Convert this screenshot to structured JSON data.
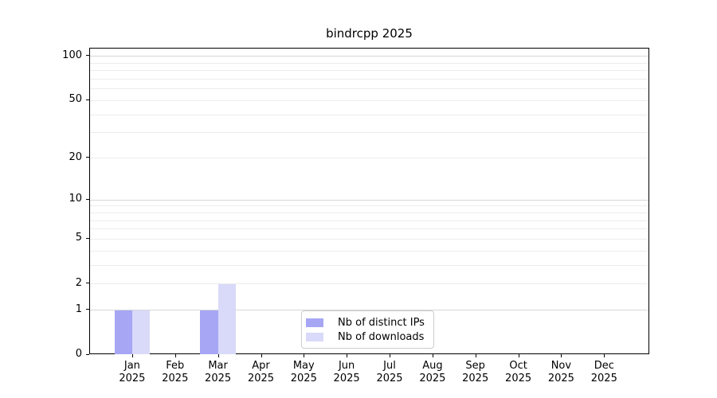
{
  "chart_data": {
    "type": "bar",
    "title": "bindrcpp 2025",
    "categories": [
      "Jan",
      "Feb",
      "Mar",
      "Apr",
      "May",
      "Jun",
      "Jul",
      "Aug",
      "Sep",
      "Oct",
      "Nov",
      "Dec"
    ],
    "x_tick_year": "2025",
    "series": [
      {
        "name": "Nb of distinct IPs",
        "color": "#a6a6f5",
        "values": [
          1,
          0,
          1,
          0,
          0,
          0,
          0,
          0,
          0,
          0,
          0,
          0
        ]
      },
      {
        "name": "Nb of downloads",
        "color": "#d9d9f9",
        "values": [
          1,
          0,
          2,
          0,
          0,
          0,
          0,
          0,
          0,
          0,
          0,
          0
        ]
      }
    ],
    "yscale": "log1p",
    "yticks": [
      0,
      1,
      2,
      5,
      10,
      20,
      50,
      100
    ],
    "ylim": [
      0,
      113
    ],
    "xlabel": "",
    "ylabel": "",
    "grid": "horizontal-major-and-minor",
    "legend_position": "lower center",
    "colors": {
      "major_grid": "#d7d7d7",
      "minor_grid": "#ececec",
      "axis": "#000000",
      "text": "#000000",
      "background": "#ffffff"
    }
  }
}
